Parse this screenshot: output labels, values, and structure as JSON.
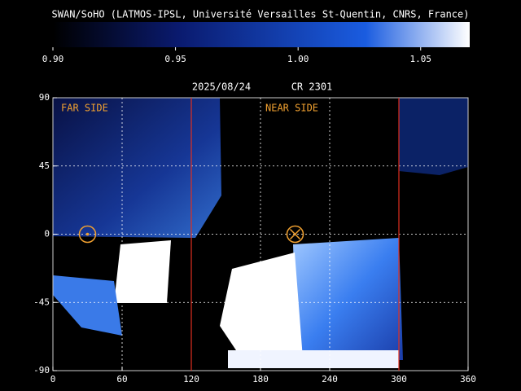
{
  "chart_data": {
    "type": "map",
    "title": "SWAN/SoHO (LATMOS-IPSL, Université Versailles St-Quentin, CNRS, France)",
    "colorbar": {
      "lim": [
        0.9,
        1.07
      ],
      "ticks": [
        {
          "value": 0.9,
          "label": "0.90"
        },
        {
          "value": 0.95,
          "label": "0.95"
        },
        {
          "value": 1.0,
          "label": "1.00"
        },
        {
          "value": 1.05,
          "label": "1.05"
        }
      ],
      "colors": [
        "#000000",
        "#0a1a6e",
        "#1a5ce0",
        "#ffffff"
      ]
    },
    "date": "2025/08/24",
    "rotation": "CR 2301",
    "far_side_label": "FAR SIDE",
    "near_side_label": "NEAR SIDE",
    "xlim": [
      0,
      360
    ],
    "ylim": [
      -90,
      90
    ],
    "xticks": [
      0,
      60,
      120,
      180,
      240,
      300,
      360
    ],
    "yticks": [
      90,
      45,
      0,
      -45,
      -90
    ],
    "grid": true,
    "vlines": [
      120,
      300
    ],
    "vline_color": "#e03020",
    "label_color": "#f0a030",
    "far_side_marker": {
      "x": 30,
      "y": 0
    },
    "near_side_marker": {
      "x": 210,
      "y": 0
    }
  }
}
